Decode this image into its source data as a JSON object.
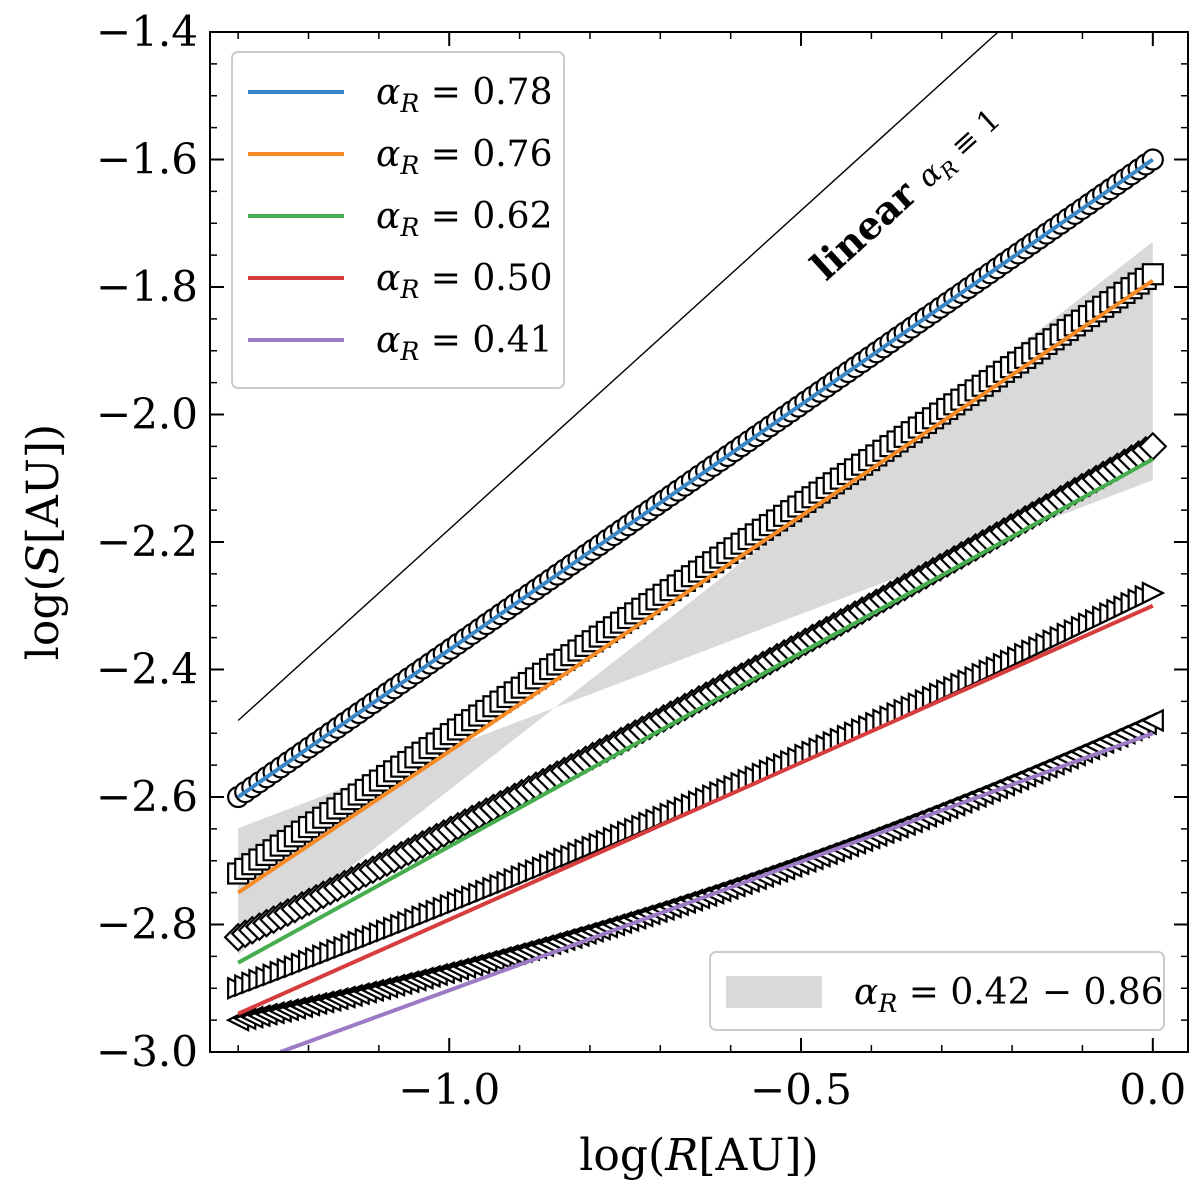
{
  "chart_data": {
    "type": "line",
    "xlabel": "log(R[AU])",
    "ylabel": "log(S[AU])",
    "xlim": [
      -1.34,
      0.05
    ],
    "ylim": [
      -3.0,
      -1.4
    ],
    "xticks": [
      -1.0,
      -0.5,
      0.0
    ],
    "xtick_labels": [
      "−1.0",
      "−0.5",
      "0.0"
    ],
    "yticks": [
      -3.0,
      -2.8,
      -2.6,
      -2.4,
      -2.2,
      -2.0,
      -1.8,
      -1.6,
      -1.4
    ],
    "ytick_labels": [
      "−3.0",
      "−2.8",
      "−2.6",
      "−2.4",
      "−2.2",
      "−2.0",
      "−1.8",
      "−1.6",
      "−1.4"
    ],
    "grid": false,
    "legend_position": "upper-left",
    "series": [
      {
        "name": "α_R = 0.78",
        "color": "#3a87c8",
        "x": [
          -1.3,
          0.0
        ],
        "y": [
          -2.6,
          -1.6
        ]
      },
      {
        "name": "α_R = 0.76",
        "color": "#f58a26",
        "x": [
          -1.3,
          0.0
        ],
        "y": [
          -2.75,
          -1.79
        ]
      },
      {
        "name": "α_R = 0.62",
        "color": "#45ad4d",
        "x": [
          -1.3,
          0.0
        ],
        "y": [
          -2.86,
          -2.07
        ]
      },
      {
        "name": "α_R = 0.50",
        "color": "#d63d3d",
        "x": [
          -1.3,
          0.0
        ],
        "y": [
          -2.94,
          -2.3
        ]
      },
      {
        "name": "α_R = 0.41",
        "color": "#9c7ac5",
        "x": [
          -1.24,
          0.0
        ],
        "y": [
          -3.0,
          -2.5
        ]
      }
    ],
    "marker_series": [
      {
        "marker": "circle",
        "x_start": -1.3,
        "x_end": 0.0,
        "y_start": -2.6,
        "y_end": -1.6,
        "curvature": 0.0
      },
      {
        "marker": "square",
        "x_start": -1.3,
        "x_end": 0.0,
        "y_start": -2.72,
        "y_end": -1.78,
        "curvature": 0.0
      },
      {
        "marker": "diamond",
        "x_start": -1.3,
        "x_end": 0.0,
        "y_start": -2.82,
        "y_end": -2.05,
        "curvature": 0.03
      },
      {
        "marker": "triangle-right",
        "x_start": -1.3,
        "x_end": 0.0,
        "y_start": -2.9,
        "y_end": -2.28,
        "curvature": 0.04
      },
      {
        "marker": "triangle-left",
        "x_start": -1.3,
        "x_end": 0.0,
        "y_start": -2.95,
        "y_end": -2.48,
        "curvature": 0.09
      }
    ],
    "band": {
      "label": "α_R = 0.42 − 0.86",
      "color": "#d9d9d9",
      "pivot_x": -0.85,
      "pivot_y": -2.46,
      "x_start": -1.3,
      "x_end": 0.0,
      "slope_low": 0.42,
      "slope_high": 0.86
    },
    "reference_line": {
      "label": "linear",
      "math_label": "α_R ≡ 1",
      "slope": 1.0,
      "x_start": -1.3,
      "x_end": -0.09,
      "y_start": -2.48
    }
  },
  "band_legend": {
    "label": "α_R = 0.42 − 0.86",
    "position": "lower-right"
  }
}
